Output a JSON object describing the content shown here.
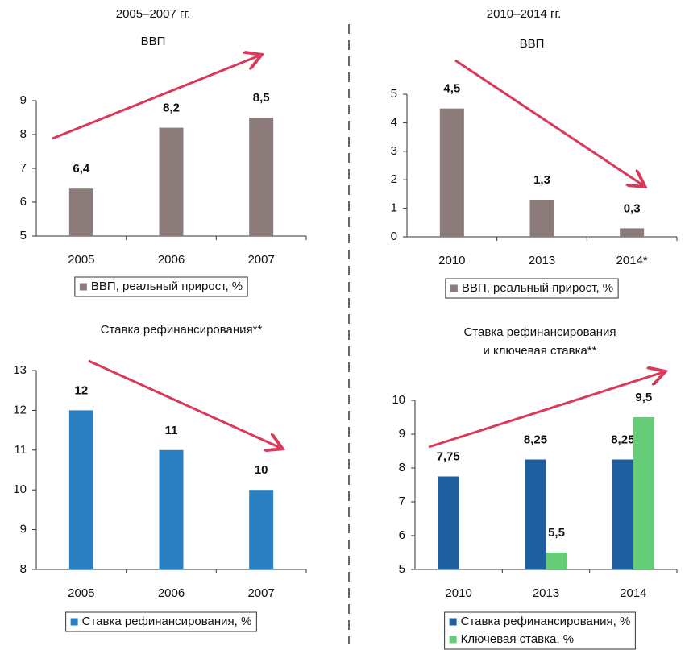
{
  "headers": [
    "2005–2007 гг.",
    "2010–2014 гг."
  ],
  "chart_data": [
    {
      "type": "bar",
      "title": [
        "ВВП"
      ],
      "categories": [
        "2005",
        "2006",
        "2007"
      ],
      "series": [
        {
          "name": "ВВП, реальный прирост, %",
          "color": "#8c7b7b",
          "values": [
            6.4,
            8.2,
            8.5
          ],
          "value_labels": [
            "6,4",
            "8,2",
            "8,5"
          ]
        }
      ],
      "ylim": [
        5,
        9
      ],
      "yticks": [
        5,
        6,
        7,
        8,
        9
      ]
    },
    {
      "type": "bar",
      "title": [
        "ВВП"
      ],
      "categories": [
        "2010",
        "2013",
        "2014*"
      ],
      "series": [
        {
          "name": "ВВП, реальный прирост, %",
          "color": "#8c7b7b",
          "values": [
            4.5,
            1.3,
            0.3
          ],
          "value_labels": [
            "4,5",
            "1,3",
            "0,3"
          ]
        }
      ],
      "ylim": [
        0,
        5
      ],
      "yticks": [
        0,
        1,
        2,
        3,
        4,
        5
      ]
    },
    {
      "type": "bar",
      "title": [
        "Ставка рефинансирования**"
      ],
      "categories": [
        "2005",
        "2006",
        "2007"
      ],
      "series": [
        {
          "name": "Ставка рефинансирования, %",
          "color": "#2a7fc0",
          "values": [
            12,
            11,
            10
          ]
        }
      ],
      "ylim": [
        8,
        13
      ],
      "yticks": [
        8,
        9,
        10,
        11,
        12,
        13
      ]
    },
    {
      "type": "bar",
      "title": [
        "Ставка рефинансирования",
        "и ключевая ставка**"
      ],
      "categories": [
        "2010",
        "2013",
        "2014"
      ],
      "series": [
        {
          "name": "Ставка рефинансирования, %",
          "color": "#1f5f9f",
          "values": [
            7.75,
            8.25,
            8.25
          ],
          "value_labels": [
            "7,75",
            "8,25",
            "8,25"
          ]
        },
        {
          "name": "Ключевая ставка, %",
          "color": "#66cc77",
          "values": [
            null,
            5.5,
            9.5
          ],
          "value_labels": [
            null,
            "5,5",
            "9,5"
          ]
        }
      ],
      "ylim": [
        5,
        10
      ],
      "yticks": [
        5,
        6,
        7,
        8,
        9,
        10
      ]
    }
  ]
}
